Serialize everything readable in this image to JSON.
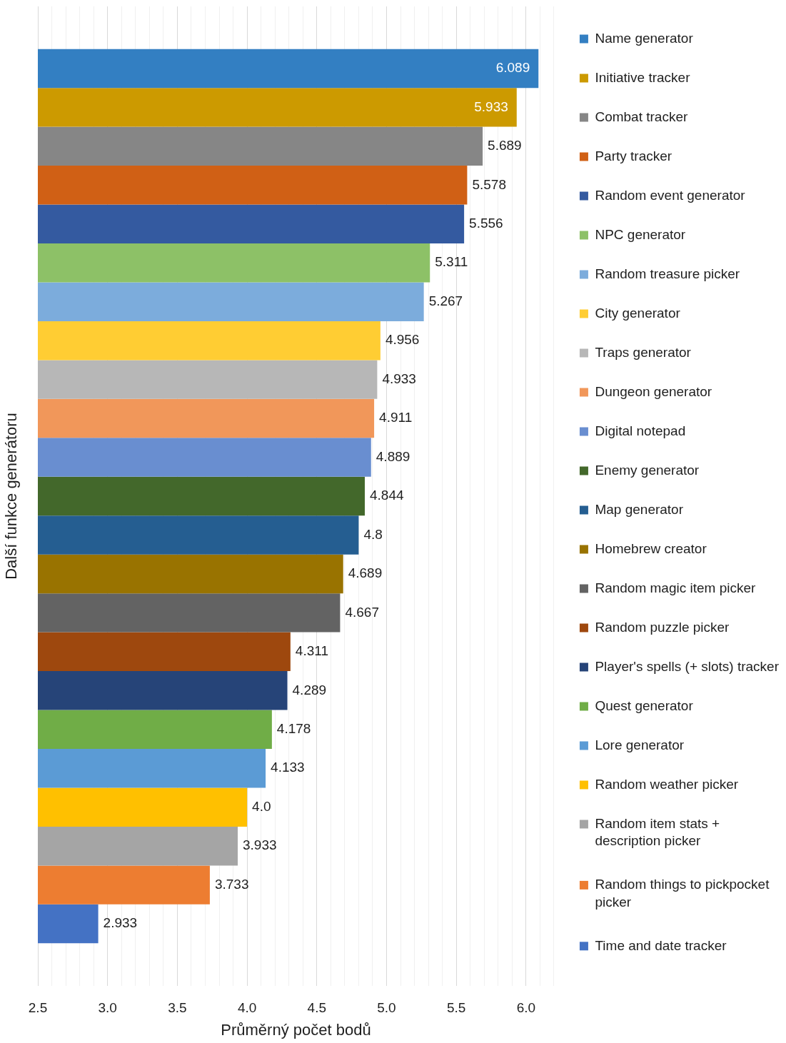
{
  "chart_data": {
    "type": "bar",
    "orientation": "horizontal",
    "xlabel": "Průměrný počet bodů",
    "ylabel": "Další funkce generátoru",
    "categories": [
      null
    ],
    "series": [
      {
        "name": "Name generator",
        "color": "#337fc2",
        "values": [
          6.089
        ],
        "value_labels": [
          "6.089"
        ]
      },
      {
        "name": "Initiative tracker",
        "color": "#cc9a00",
        "values": [
          5.933
        ],
        "value_labels": [
          "5.933"
        ]
      },
      {
        "name": "Combat tracker",
        "color": "#868686",
        "values": [
          5.689
        ],
        "value_labels": [
          "5.689"
        ]
      },
      {
        "name": "Party tracker",
        "color": "#d06015",
        "values": [
          5.578
        ],
        "value_labels": [
          "5.578"
        ]
      },
      {
        "name": "Random event generator",
        "color": "#345aa0",
        "values": [
          5.556
        ],
        "value_labels": [
          "5.556"
        ]
      },
      {
        "name": "NPC generator",
        "color": "#8dc167",
        "values": [
          5.311
        ],
        "value_labels": [
          "5.311"
        ]
      },
      {
        "name": "Random treasure picker",
        "color": "#7cacdc",
        "values": [
          5.267
        ],
        "value_labels": [
          "5.267"
        ]
      },
      {
        "name": "City generator",
        "color": "#ffcd33",
        "values": [
          4.956
        ],
        "value_labels": [
          "4.956"
        ]
      },
      {
        "name": "Traps generator",
        "color": "#b7b7b7",
        "values": [
          4.933
        ],
        "value_labels": [
          "4.933"
        ]
      },
      {
        "name": "Dungeon generator",
        "color": "#f1975a",
        "values": [
          4.911
        ],
        "value_labels": [
          "4.911"
        ]
      },
      {
        "name": "Digital notepad",
        "color": "#698ed0",
        "values": [
          4.889
        ],
        "value_labels": [
          "4.889"
        ]
      },
      {
        "name": "Enemy generator",
        "color": "#43682b",
        "values": [
          4.844
        ],
        "value_labels": [
          "4.844"
        ]
      },
      {
        "name": "Map generator",
        "color": "#255e91",
        "values": [
          4.8
        ],
        "value_labels": [
          "4.8"
        ]
      },
      {
        "name": "Homebrew creator",
        "color": "#997300",
        "values": [
          4.689
        ],
        "value_labels": [
          "4.689"
        ]
      },
      {
        "name": "Random magic item picker",
        "color": "#636363",
        "values": [
          4.667
        ],
        "value_labels": [
          "4.667"
        ]
      },
      {
        "name": "Random puzzle picker",
        "color": "#9e480e",
        "values": [
          4.311
        ],
        "value_labels": [
          "4.311"
        ]
      },
      {
        "name": "Player's spells (+ slots) tracker",
        "color": "#264478",
        "values": [
          4.289
        ],
        "value_labels": [
          "4.289"
        ]
      },
      {
        "name": "Quest generator",
        "color": "#70ad47",
        "values": [
          4.178
        ],
        "value_labels": [
          "4.178"
        ]
      },
      {
        "name": "Lore generator",
        "color": "#5b9bd5",
        "values": [
          4.133
        ],
        "value_labels": [
          "4.133"
        ]
      },
      {
        "name": "Random weather picker",
        "color": "#ffc000",
        "values": [
          4.0
        ],
        "value_labels": [
          "4.0"
        ]
      },
      {
        "name": "Random item stats + description picker",
        "color": "#a5a5a5",
        "values": [
          3.933
        ],
        "value_labels": [
          "3.933"
        ]
      },
      {
        "name": "Random things to pickpocket picker",
        "color": "#ed7d31",
        "values": [
          3.733
        ],
        "value_labels": [
          "3.733"
        ]
      },
      {
        "name": "Time and date tracker",
        "color": "#4472c4",
        "values": [
          2.933
        ],
        "value_labels": [
          "2.933"
        ]
      }
    ],
    "xlim": [
      2.5,
      6.2
    ],
    "xticks": [
      2.5,
      {
        "value": 2.6,
        "label": null
      },
      {
        "value": 2.7,
        "label": null
      },
      {
        "value": 2.8,
        "label": null
      },
      {
        "value": 2.9,
        "label": null
      },
      {
        "value": 3,
        "label": "3.0"
      },
      {
        "value": 3.1,
        "label": null
      },
      {
        "value": 3.2,
        "label": null
      },
      {
        "value": 3.3,
        "label": null
      },
      {
        "value": 3.4,
        "label": null
      },
      3.5,
      {
        "value": 3.6,
        "label": null
      },
      {
        "value": 3.7,
        "label": null
      },
      {
        "value": 3.8,
        "label": null
      },
      {
        "value": 3.9,
        "label": null
      },
      {
        "value": 4,
        "label": "4.0"
      },
      {
        "value": 4.1,
        "label": null
      },
      {
        "value": 4.2,
        "label": null
      },
      {
        "value": 4.3,
        "label": null
      },
      {
        "value": 4.4,
        "label": null
      },
      4.5,
      {
        "value": 4.6,
        "label": null
      },
      {
        "value": 4.7,
        "label": null
      },
      {
        "value": 4.8,
        "label": null
      },
      {
        "value": 4.9,
        "label": null
      },
      {
        "value": 5,
        "label": "5.0"
      },
      {
        "value": 5.1,
        "label": null
      },
      {
        "value": 5.2,
        "label": null
      },
      {
        "value": 5.3,
        "label": null
      },
      {
        "value": 5.4,
        "label": null
      },
      5.5,
      {
        "value": 5.6,
        "label": null
      },
      {
        "value": 5.7,
        "label": null
      },
      {
        "value": 5.8,
        "label": null
      },
      {
        "value": 5.9,
        "label": null
      },
      {
        "value": 6,
        "label": "6.0"
      },
      {
        "value": 6.1,
        "label": null
      },
      {
        "value": 6.2,
        "label": null
      }
    ],
    "grid": "x",
    "legend": "right",
    "tick_labels": "x"
  }
}
